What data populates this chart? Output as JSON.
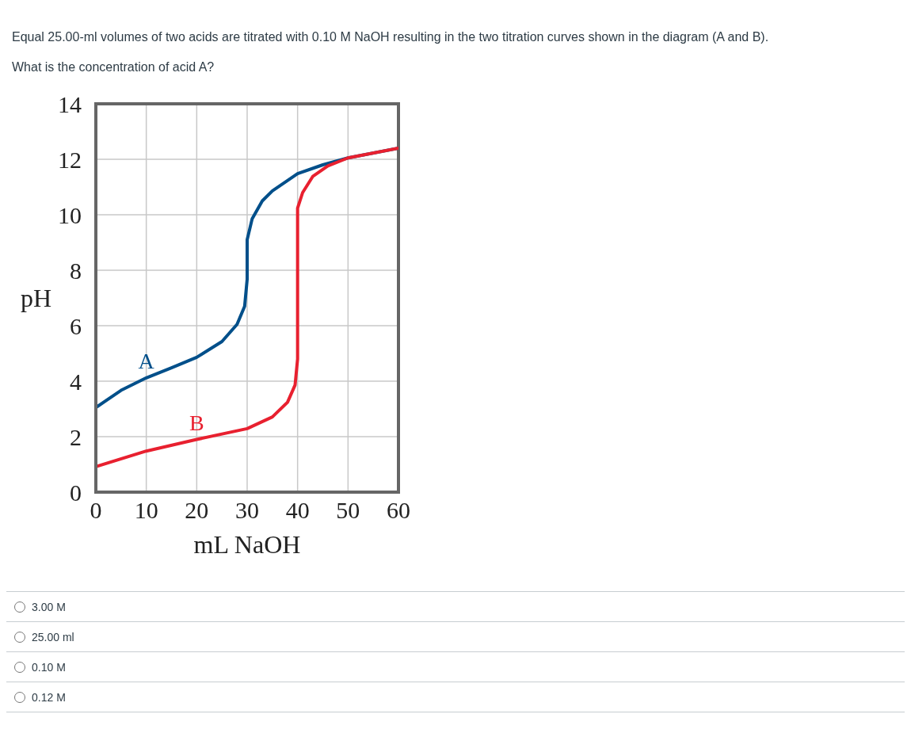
{
  "chart_data": {
    "type": "line",
    "title": "Equal 25.00-ml volumes of two acids are titrated with 0.10 M NaOH resulting in the two titration curves shown in the diagram (A and B).",
    "subtitle": "What is the concentration of acid A?",
    "xlabel": "mL NaOH",
    "ylabel": "pH",
    "series": [
      {
        "name": "A",
        "color": "#004f8a",
        "x": [
          0,
          5,
          10,
          15,
          20,
          25,
          28,
          29.5,
          30,
          30,
          31,
          33,
          35,
          40,
          45,
          50,
          60
        ],
        "values": [
          3.05,
          3.67,
          4.12,
          4.48,
          4.86,
          5.43,
          6.05,
          6.7,
          7.67,
          9.1,
          9.86,
          10.5,
          10.86,
          11.48,
          11.8,
          12.05,
          12.4
        ]
      },
      {
        "name": "B",
        "color": "#e8202f",
        "x": [
          0,
          10,
          20,
          30,
          35,
          38,
          39.5,
          40,
          40,
          40,
          41,
          43,
          46,
          50,
          60
        ],
        "values": [
          0.92,
          1.48,
          1.9,
          2.29,
          2.71,
          3.24,
          3.86,
          4.8,
          8.6,
          10.24,
          10.8,
          11.38,
          11.76,
          12.05,
          12.4
        ]
      }
    ],
    "annotations": [
      "3.00 M",
      "25.00 ml",
      "0.10 M",
      "0.12 M"
    ],
    "xlim": [
      0,
      60
    ],
    "xticks": [
      0,
      10,
      20,
      30,
      40,
      50,
      60
    ],
    "ylim": [
      0,
      14
    ],
    "yticks": [
      0,
      2,
      4,
      6,
      8,
      10,
      12,
      14
    ],
    "grid": true,
    "marker": "none",
    "line_style": "solid"
  }
}
